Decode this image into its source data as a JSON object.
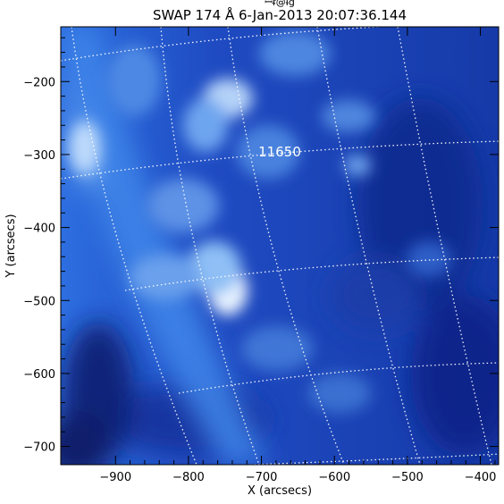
{
  "header": {
    "top_fragment": "ꟷᵲ@ɨg",
    "title": "SWAP 174 Å   6-Jan-2013 20:07:36.144"
  },
  "image": {
    "label": "11650",
    "x_axis": {
      "label": "X (arcsecs)",
      "ticks": [
        {
          "value": -900,
          "text": "−900"
        },
        {
          "value": -800,
          "text": "−800"
        },
        {
          "value": -700,
          "text": "−700"
        },
        {
          "value": -600,
          "text": "−600"
        },
        {
          "value": -500,
          "text": "−500"
        },
        {
          "value": -400,
          "text": "−400"
        }
      ]
    },
    "y_axis": {
      "label": "Y (arcsecs)",
      "ticks": [
        {
          "value": -200,
          "text": "−200"
        },
        {
          "value": -300,
          "text": "−300"
        },
        {
          "value": -400,
          "text": "−400"
        },
        {
          "value": -500,
          "text": "−500"
        },
        {
          "value": -600,
          "text": "−600"
        },
        {
          "value": -700,
          "text": "−700"
        }
      ]
    }
  },
  "colors": {
    "deep": "#0a1a7a",
    "mid": "#1f4ec8",
    "bright": "#6fa9f2",
    "highlight": "#e8f2ff"
  }
}
